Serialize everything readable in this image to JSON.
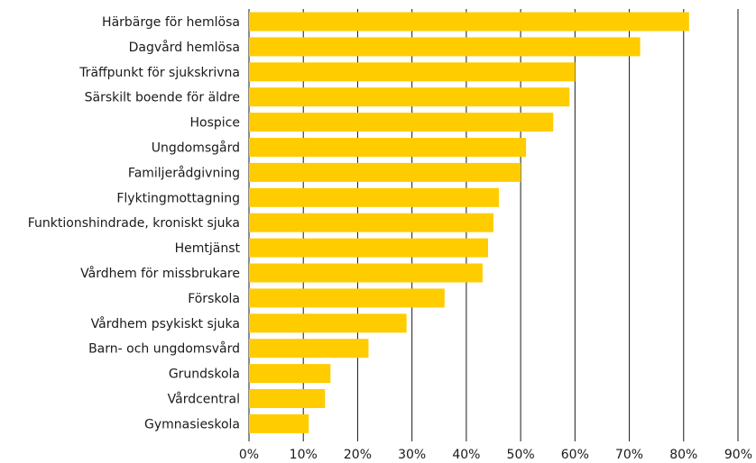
{
  "chart_data": {
    "type": "bar",
    "orientation": "horizontal",
    "categories": [
      "Härbärge för hemlösa",
      "Dagvård hemlösa",
      "Träffpunkt för sjukskrivna",
      "Särskilt boende för äldre",
      "Hospice",
      "Ungdomsgård",
      "Familjerådgivning",
      "Flyktingmottagning",
      "Funktionshindrade, kroniskt sjuka",
      "Hemtjänst",
      "Vårdhem för missbrukare",
      "Förskola",
      "Vårdhem psykiskt sjuka",
      "Barn- och ungdomsvård",
      "Grundskola",
      "Vårdcentral",
      "Gymnasieskola"
    ],
    "values": [
      81,
      72,
      60,
      59,
      56,
      51,
      50,
      46,
      45,
      44,
      43,
      36,
      29,
      22,
      15,
      14,
      11
    ],
    "xlim": [
      0,
      90
    ],
    "ticks": [
      0,
      10,
      20,
      30,
      40,
      50,
      60,
      70,
      80,
      90
    ],
    "tick_labels": [
      "0%",
      "10%",
      "20%",
      "30%",
      "40%",
      "50%",
      "60%",
      "70%",
      "80%",
      "90%"
    ],
    "grid": "vertical",
    "title": "",
    "xlabel": "",
    "ylabel": "",
    "colors": {
      "bar": "#FFCC00",
      "grid": "#1a1a1a",
      "text": "#1a1a1a"
    }
  }
}
